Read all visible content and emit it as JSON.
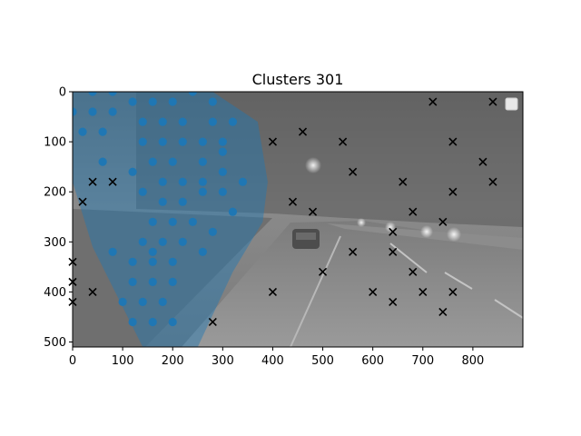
{
  "chart_data": {
    "type": "scatter",
    "title": "Clusters 301",
    "xlabel": "",
    "ylabel": "",
    "xlim": [
      0,
      900
    ],
    "ylim": [
      510,
      0
    ],
    "x_ticks": [
      0,
      100,
      200,
      300,
      400,
      500,
      600,
      700,
      800
    ],
    "y_ticks": [
      0,
      100,
      200,
      300,
      400,
      500
    ],
    "grid": false,
    "legend": "top-right",
    "background": "grayscale night road photograph",
    "colors": {
      "dots": "#1f77b4",
      "region": "#1f77b4",
      "crosses": "#000000"
    },
    "region_polygon": [
      [
        0,
        0
      ],
      [
        280,
        0
      ],
      [
        370,
        60
      ],
      [
        390,
        180
      ],
      [
        380,
        260
      ],
      [
        320,
        360
      ],
      [
        250,
        510
      ],
      [
        140,
        510
      ],
      [
        100,
        430
      ],
      [
        40,
        310
      ],
      [
        0,
        180
      ]
    ],
    "series": [
      {
        "marker": "dot",
        "points": [
          [
            40,
            0
          ],
          [
            80,
            0
          ],
          [
            240,
            0
          ],
          [
            0,
            40
          ],
          [
            40,
            40
          ],
          [
            80,
            40
          ],
          [
            20,
            80
          ],
          [
            60,
            80
          ],
          [
            120,
            20
          ],
          [
            160,
            20
          ],
          [
            200,
            20
          ],
          [
            280,
            20
          ],
          [
            140,
            60
          ],
          [
            180,
            60
          ],
          [
            220,
            60
          ],
          [
            280,
            60
          ],
          [
            320,
            60
          ],
          [
            140,
            100
          ],
          [
            180,
            100
          ],
          [
            220,
            100
          ],
          [
            260,
            100
          ],
          [
            300,
            100
          ],
          [
            300,
            120
          ],
          [
            60,
            140
          ],
          [
            160,
            140
          ],
          [
            200,
            140
          ],
          [
            260,
            140
          ],
          [
            120,
            160
          ],
          [
            300,
            160
          ],
          [
            140,
            200
          ],
          [
            180,
            180
          ],
          [
            220,
            180
          ],
          [
            260,
            180
          ],
          [
            340,
            180
          ],
          [
            180,
            220
          ],
          [
            220,
            220
          ],
          [
            260,
            200
          ],
          [
            300,
            200
          ],
          [
            320,
            240
          ],
          [
            160,
            260
          ],
          [
            200,
            260
          ],
          [
            240,
            260
          ],
          [
            280,
            280
          ],
          [
            140,
            300
          ],
          [
            180,
            300
          ],
          [
            220,
            300
          ],
          [
            80,
            320
          ],
          [
            160,
            320
          ],
          [
            260,
            320
          ],
          [
            120,
            340
          ],
          [
            160,
            340
          ],
          [
            200,
            340
          ],
          [
            120,
            380
          ],
          [
            160,
            380
          ],
          [
            200,
            380
          ],
          [
            100,
            420
          ],
          [
            140,
            420
          ],
          [
            180,
            420
          ],
          [
            120,
            460
          ],
          [
            160,
            460
          ],
          [
            200,
            460
          ]
        ]
      },
      {
        "marker": "x",
        "points": [
          [
            720,
            20
          ],
          [
            840,
            20
          ],
          [
            460,
            80
          ],
          [
            400,
            100
          ],
          [
            540,
            100
          ],
          [
            760,
            100
          ],
          [
            820,
            140
          ],
          [
            560,
            160
          ],
          [
            40,
            180
          ],
          [
            80,
            180
          ],
          [
            660,
            180
          ],
          [
            840,
            180
          ],
          [
            760,
            200
          ],
          [
            20,
            220
          ],
          [
            440,
            220
          ],
          [
            480,
            240
          ],
          [
            680,
            240
          ],
          [
            740,
            260
          ],
          [
            640,
            280
          ],
          [
            560,
            320
          ],
          [
            640,
            320
          ],
          [
            0,
            340
          ],
          [
            500,
            360
          ],
          [
            680,
            360
          ],
          [
            0,
            380
          ],
          [
            40,
            400
          ],
          [
            400,
            400
          ],
          [
            600,
            400
          ],
          [
            700,
            400
          ],
          [
            760,
            400
          ],
          [
            0,
            420
          ],
          [
            640,
            420
          ],
          [
            740,
            440
          ],
          [
            280,
            460
          ]
        ]
      }
    ]
  }
}
